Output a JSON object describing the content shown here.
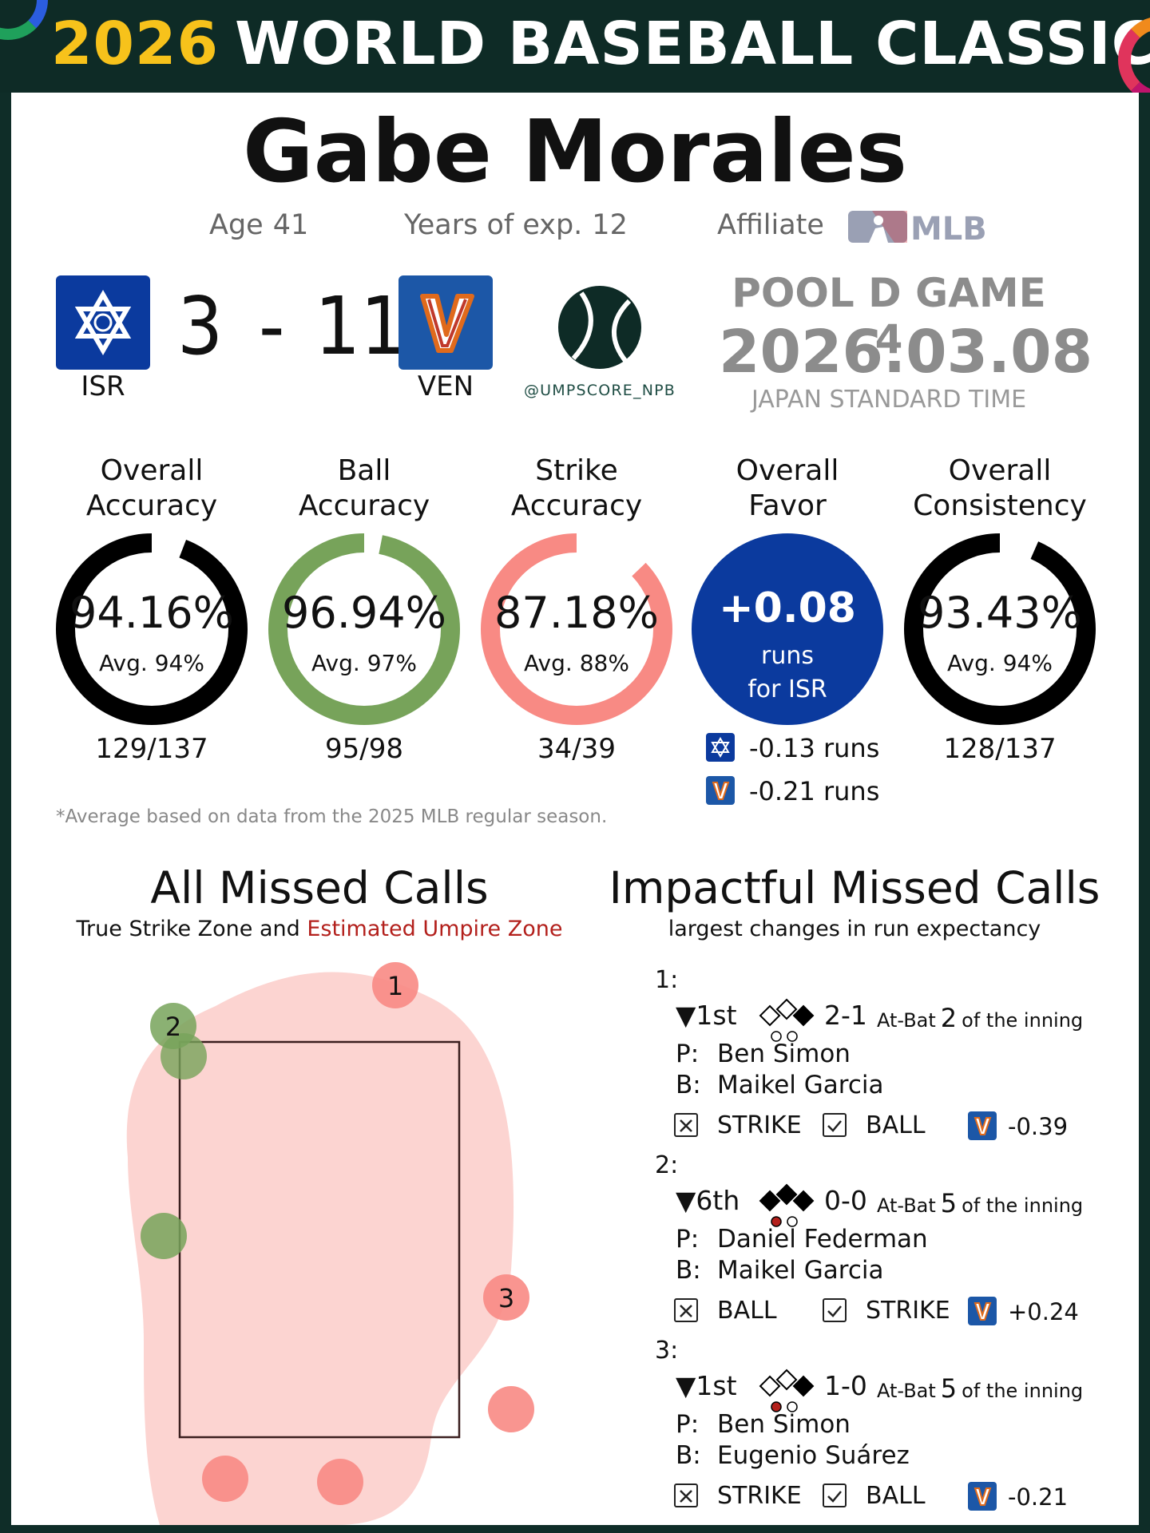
{
  "banner": {
    "year": "2026",
    "title": "WORLD BASEBALL CLASSIC"
  },
  "umpire": {
    "name": "Gabe Morales",
    "age_label": "Age",
    "age": "41",
    "exp_label": "Years of exp.",
    "exp": "12",
    "affiliate_label": "Affiliate",
    "affiliate": "MLB"
  },
  "game": {
    "home": {
      "code": "ISR",
      "score": "3",
      "color": "#0b3a9e"
    },
    "away": {
      "code": "VEN",
      "score": "11",
      "color": "#1c57a7"
    },
    "dash": "-",
    "handle": "@UMPSCORE_NPB",
    "pool": "POOL D GAME 4",
    "date": "2026.03.08",
    "tz": "JAPAN STANDARD TIME"
  },
  "metrics": [
    {
      "title1": "Overall",
      "title2": "Accuracy",
      "pct": "94.16%",
      "avg": "Avg. 94%",
      "frac": "129/137",
      "value": 94.16,
      "color": "#000000"
    },
    {
      "title1": "Ball",
      "title2": "Accuracy",
      "pct": "96.94%",
      "avg": "Avg. 97%",
      "frac": "95/98",
      "value": 96.94,
      "color": "#77a35a"
    },
    {
      "title1": "Strike",
      "title2": "Accuracy",
      "pct": "87.18%",
      "avg": "Avg. 88%",
      "frac": "34/39",
      "value": 87.18,
      "color": "#f88a84"
    },
    {
      "title1": "Overall",
      "title2": "Consistency",
      "pct": "93.43%",
      "avg": "Avg. 94%",
      "frac": "128/137",
      "value": 93.43,
      "color": "#000000"
    }
  ],
  "favor": {
    "title1": "Overall",
    "title2": "Favor",
    "value": "+0.08",
    "line1": "runs",
    "line2": "for ISR",
    "home_runs": "-0.13 runs",
    "away_runs": "-0.21 runs"
  },
  "footnote": "*Average based on data from the 2025 MLB regular season.",
  "missed": {
    "title": "All Missed Calls",
    "sub_a": "True Strike Zone and ",
    "sub_b": "Estimated Umpire Zone",
    "labels": [
      "1",
      "2",
      "3"
    ]
  },
  "impact": {
    "title": "Impactful Missed Calls",
    "sub": "largest changes in run expectancy",
    "calls": [
      {
        "num": "1:",
        "inning": "▼1st",
        "count": "2-1",
        "atbat_pre": "At-Bat",
        "atbat_n": "2",
        "atbat_post": "of the inning",
        "pitcher_lbl": "P:",
        "pitcher": "Ben Simon",
        "batter_lbl": "B:",
        "batter": "Maikel Garcia",
        "wrong": "STRIKE",
        "right": "BALL",
        "delta": "-0.39"
      },
      {
        "num": "2:",
        "inning": "▼6th",
        "count": "0-0",
        "atbat_pre": "At-Bat",
        "atbat_n": "5",
        "atbat_post": "of the inning",
        "pitcher_lbl": "P:",
        "pitcher": "Daniel Federman",
        "batter_lbl": "B:",
        "batter": "Maikel Garcia",
        "wrong": "BALL",
        "right": "STRIKE",
        "delta": "+0.24"
      },
      {
        "num": "3:",
        "inning": "▼1st",
        "count": "1-0",
        "atbat_pre": "At-Bat",
        "atbat_n": "5",
        "atbat_post": "of the inning",
        "pitcher_lbl": "P:",
        "pitcher": "Ben Simon",
        "batter_lbl": "B:",
        "batter": "Eugenio Suárez",
        "wrong": "STRIKE",
        "right": "BALL",
        "delta": "-0.21"
      }
    ]
  }
}
